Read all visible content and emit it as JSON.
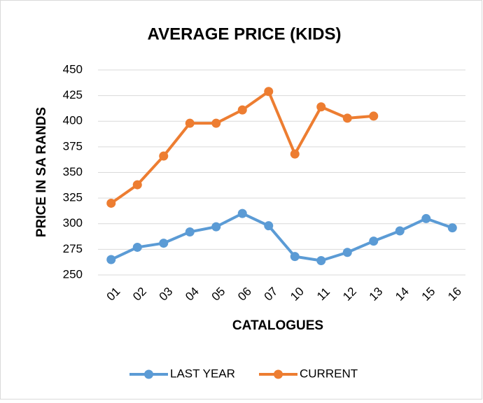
{
  "chart_data": {
    "type": "line",
    "title": "AVERAGE PRICE (KIDS)",
    "x_label": "CATALOGUES",
    "y_label": "PRICE IN SA RANDS",
    "categories": [
      "01",
      "02",
      "03",
      "04",
      "05",
      "06",
      "07",
      "10",
      "11",
      "12",
      "13",
      "14",
      "15",
      "16"
    ],
    "series": [
      {
        "name": "LAST YEAR",
        "color": "#5b9bd5",
        "values": [
          265,
          277,
          281,
          292,
          297,
          310,
          298,
          268,
          264,
          272,
          283,
          293,
          305,
          296
        ]
      },
      {
        "name": "CURRENT",
        "color": "#ed7d31",
        "values": [
          320,
          338,
          366,
          398,
          398,
          411,
          429,
          368,
          414,
          403,
          405,
          null,
          null,
          null
        ]
      }
    ],
    "ylim": [
      250,
      450
    ],
    "yticks": [
      250,
      275,
      300,
      325,
      350,
      375,
      400,
      425,
      450
    ],
    "grid": true,
    "legend": "bottom"
  }
}
